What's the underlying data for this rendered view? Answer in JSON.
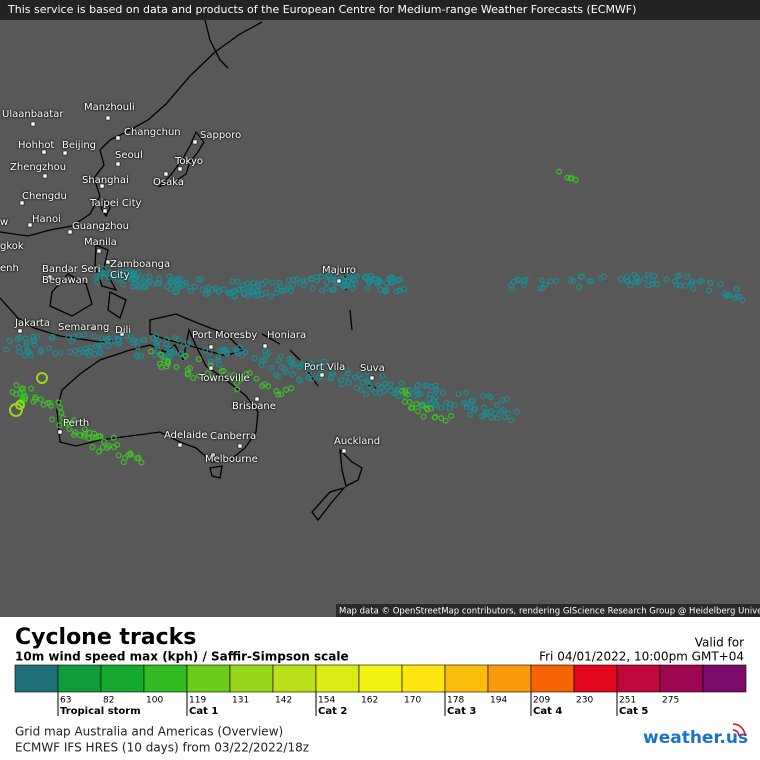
{
  "banner": "This service is based on data and products of the European Centre for Medium-range Weather Forecasts (ECMWF)",
  "cities": [
    "Ulaanbaatar",
    "Manzhouli",
    "Changchun",
    "Sapporo",
    "Hohhot",
    "Beijing",
    "Seoul",
    "Tokyo",
    "Zhengzhou",
    "Shanghai",
    "Osaka",
    "Chengdu",
    "Taipei City",
    "Hanoi",
    "Guangzhou",
    "gkok",
    "Manila",
    "Zamboanga City",
    "enh",
    "Bandar Seri Begawan",
    "Majuro",
    "Jakarta",
    "Semarang",
    "Dili",
    "Port Moresby",
    "Honiara",
    "Port Vila",
    "Suva",
    "Townsville",
    "Brisbane",
    "Perth",
    "Adelaide",
    "Canberra",
    "Melbourne",
    "Auckland",
    "w"
  ],
  "attribution": "Map data © OpenStreetMap contributors, rendering GIScience Research Group @ Heidelberg University",
  "legend": {
    "title": "Cyclone tracks",
    "subtitle": "10m wind speed max (kph) / Saffir-Simpson scale",
    "valid_label": "Valid for",
    "valid_time": "Fri 04/01/2022, 10:00pm GMT+04",
    "colors": [
      "#1f6f78",
      "#119a3c",
      "#16a92f",
      "#33bb24",
      "#6acb1d",
      "#96d51a",
      "#b9e018",
      "#d9ec15",
      "#f1f312",
      "#fde50f",
      "#fbbd0c",
      "#f79b0a",
      "#f46306",
      "#e2071f",
      "#c0073b",
      "#9d0751",
      "#7a0b6d"
    ],
    "ticks": [
      63,
      82,
      100,
      119,
      131,
      142,
      154,
      162,
      170,
      178,
      194,
      209,
      230,
      251,
      275
    ],
    "categories": [
      "Tropical storm",
      null,
      null,
      "Cat 1",
      null,
      null,
      "Cat 2",
      null,
      null,
      "Cat 3",
      null,
      "Cat 4",
      null,
      "Cat 5",
      null
    ]
  },
  "footer": [
    "Grid map Australia and Americas (Overview)",
    "ECMWF IFS HRES (10 days)  from  03/22/2022/18z"
  ],
  "logo": "weather.us"
}
